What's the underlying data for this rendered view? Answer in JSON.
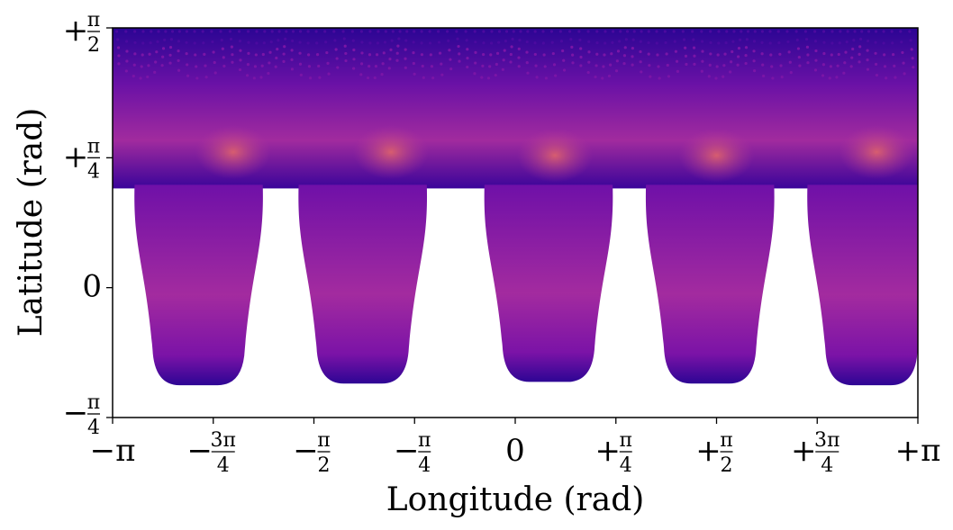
{
  "chart_data": {
    "type": "scatter",
    "title": "",
    "xlabel": "Longitude (rad)",
    "ylabel": "Latitude (rad)",
    "xlim": [
      -3.14159,
      3.14159
    ],
    "ylim": [
      -0.7854,
      1.5708
    ],
    "x_ticks": [
      {
        "value": -3.14159,
        "label": "−π"
      },
      {
        "value": -2.35619,
        "sign": "−",
        "num": "3π",
        "den": "4"
      },
      {
        "value": -1.5708,
        "sign": "−",
        "num": "π",
        "den": "2"
      },
      {
        "value": -0.7854,
        "sign": "−",
        "num": "π",
        "den": "4"
      },
      {
        "value": 0,
        "label": "0"
      },
      {
        "value": 0.7854,
        "sign": "+",
        "num": "π",
        "den": "4"
      },
      {
        "value": 1.5708,
        "sign": "+",
        "num": "π",
        "den": "2"
      },
      {
        "value": 2.35619,
        "sign": "+",
        "num": "3π",
        "den": "4"
      },
      {
        "value": 3.14159,
        "label": "+π"
      }
    ],
    "y_ticks": [
      {
        "value": -0.7854,
        "sign": "−",
        "num": "π",
        "den": "4"
      },
      {
        "value": 0,
        "label": "0"
      },
      {
        "value": 0.7854,
        "sign": "+",
        "num": "π",
        "den": "4"
      },
      {
        "value": 1.5708,
        "sign": "+",
        "num": "π",
        "den": "2"
      }
    ],
    "grid": false,
    "colormap": "plasma",
    "colors": {
      "dark": "#2a0593",
      "mid": "#8e1ba3",
      "bright": "#d8576b"
    },
    "lobes": [
      {
        "center_lon": -2.47,
        "lat_min": -0.59
      },
      {
        "center_lon": -1.19,
        "lat_min": -0.58
      },
      {
        "center_lon": 0.26,
        "lat_min": -0.57
      },
      {
        "center_lon": 1.52,
        "lat_min": -0.58
      },
      {
        "center_lon": 2.78,
        "lat_min": -0.59
      }
    ],
    "band": {
      "lat_min": 0.6,
      "lat_max": 1.5708
    },
    "hotspots": [
      {
        "lon": -2.2,
        "lat": 0.82
      },
      {
        "lon": -0.97,
        "lat": 0.82
      },
      {
        "lon": 0.31,
        "lat": 0.8
      },
      {
        "lon": 1.57,
        "lat": 0.8
      },
      {
        "lon": 2.82,
        "lat": 0.82
      }
    ]
  }
}
